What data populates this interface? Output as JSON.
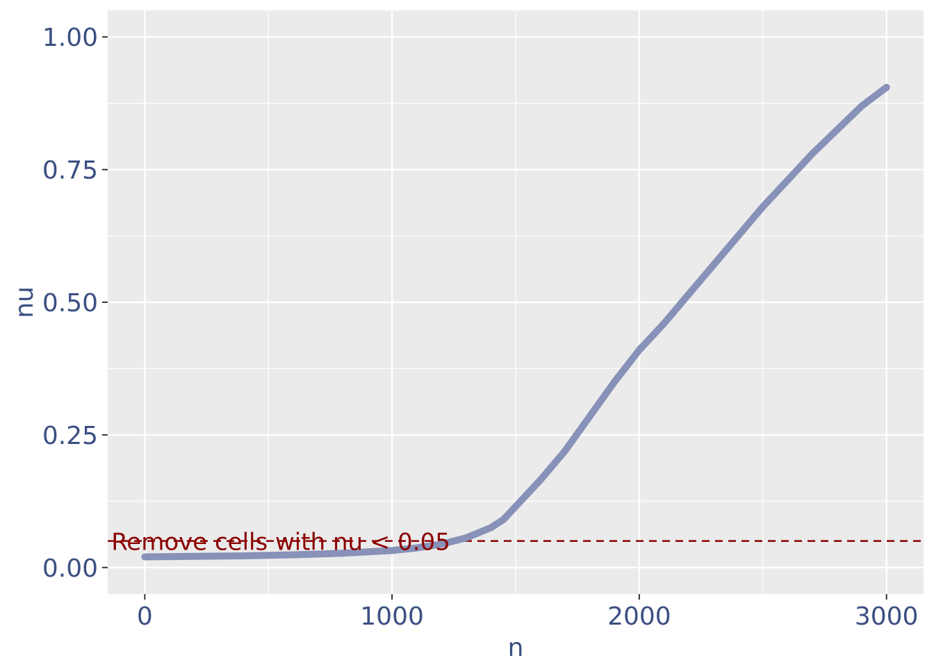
{
  "chart_data": {
    "type": "line",
    "title": "",
    "xlabel": "n",
    "ylabel": "nu",
    "xlim": [
      -150,
      3150
    ],
    "ylim": [
      -0.05,
      1.05
    ],
    "x_ticks": [
      0,
      1000,
      2000,
      3000
    ],
    "x_tick_labels": [
      "0",
      "1000",
      "2000",
      "3000"
    ],
    "y_ticks": [
      0.0,
      0.25,
      0.5,
      0.75,
      1.0
    ],
    "y_tick_labels": [
      "0.00",
      "0.25",
      "0.50",
      "0.75",
      "1.00"
    ],
    "grid": true,
    "series": [
      {
        "name": "nu",
        "color": "#8891b8",
        "x": [
          0,
          200,
          400,
          600,
          800,
          1000,
          1100,
          1200,
          1300,
          1400,
          1450,
          1500,
          1600,
          1700,
          1800,
          1900,
          2000,
          2100,
          2200,
          2300,
          2400,
          2500,
          2600,
          2700,
          2800,
          2900,
          3000
        ],
        "y": [
          0.02,
          0.021,
          0.022,
          0.024,
          0.027,
          0.032,
          0.037,
          0.044,
          0.056,
          0.075,
          0.09,
          0.115,
          0.165,
          0.22,
          0.285,
          0.35,
          0.41,
          0.46,
          0.515,
          0.57,
          0.625,
          0.68,
          0.73,
          0.78,
          0.825,
          0.87,
          0.905
        ]
      }
    ],
    "hline": {
      "y": 0.05,
      "color": "#8b0000",
      "style": "dashed"
    },
    "annotations": [
      {
        "text": "Remove cells with nu < 0.05",
        "x": 550,
        "y": 0.05,
        "color": "#8b0000"
      }
    ]
  },
  "colors": {
    "panel": "#ebebeb",
    "grid": "#ffffff",
    "tick_text": "#3b4f82",
    "tick_mark": "#333333"
  }
}
